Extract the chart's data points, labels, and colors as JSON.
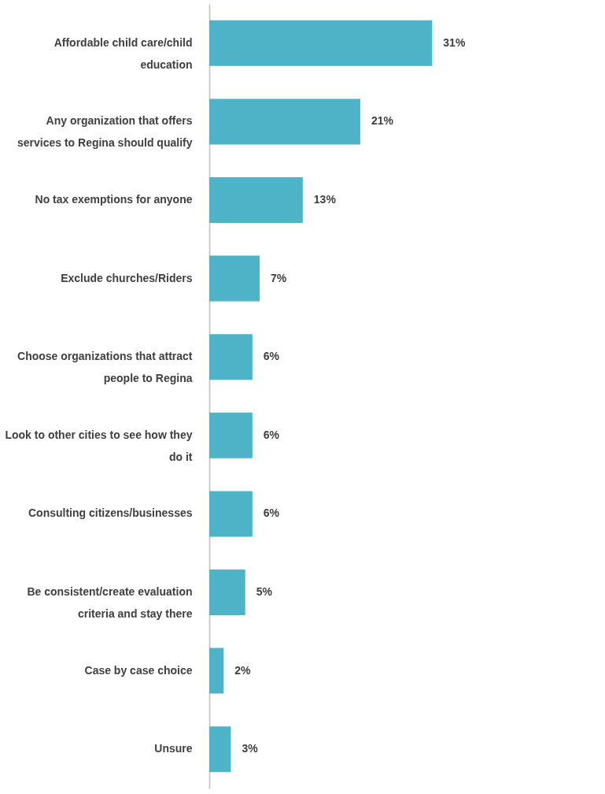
{
  "chart_data": {
    "type": "bar",
    "orientation": "horizontal",
    "categories": [
      "Affordable child care/child education",
      "Any organization that offers services to Regina should qualify",
      "No tax exemptions for anyone",
      "Exclude churches/Riders",
      "Choose organizations that attract people to Regina",
      "Look to other cities to see how they do it",
      "Consulting citizens/businesses",
      "Be consistent/create evaluation criteria and stay there",
      "Case by case choice",
      "Unsure"
    ],
    "values": [
      31,
      21,
      13,
      7,
      6,
      6,
      6,
      5,
      2,
      3
    ],
    "value_labels": [
      "31%",
      "21%",
      "13%",
      "7%",
      "6%",
      "6%",
      "6%",
      "5%",
      "2%",
      "3%"
    ],
    "color": "#4fb3c8"
  }
}
